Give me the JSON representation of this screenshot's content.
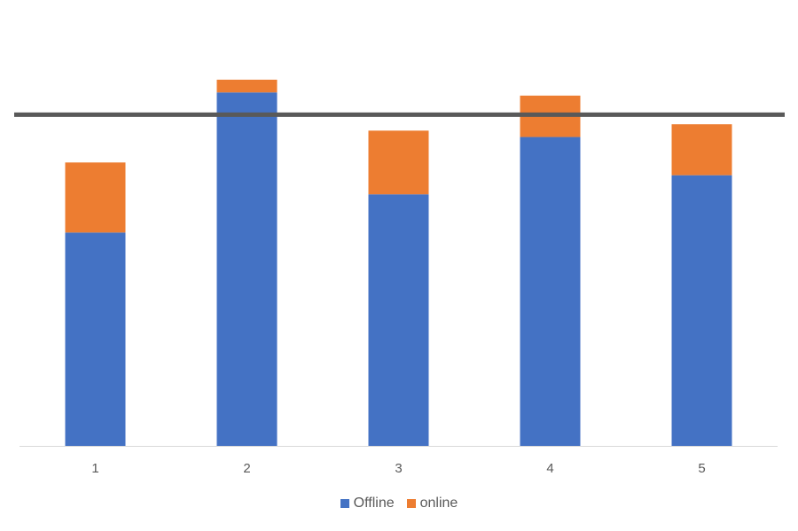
{
  "chart_data": {
    "type": "bar",
    "stacked": true,
    "categories": [
      "1",
      "2",
      "3",
      "4",
      "5"
    ],
    "series": [
      {
        "name": "Offline",
        "color": "#4472C4",
        "values": [
          67,
          111,
          79,
          97,
          85
        ]
      },
      {
        "name": "online",
        "color": "#ED7D31",
        "values": [
          22,
          4,
          20,
          13,
          16
        ]
      }
    ],
    "reference_line": {
      "value": 104,
      "color": "#595959"
    },
    "ylim": [
      0,
      130
    ],
    "grid": false,
    "legend": "bottom",
    "title": "",
    "xlabel": "",
    "ylabel": ""
  }
}
